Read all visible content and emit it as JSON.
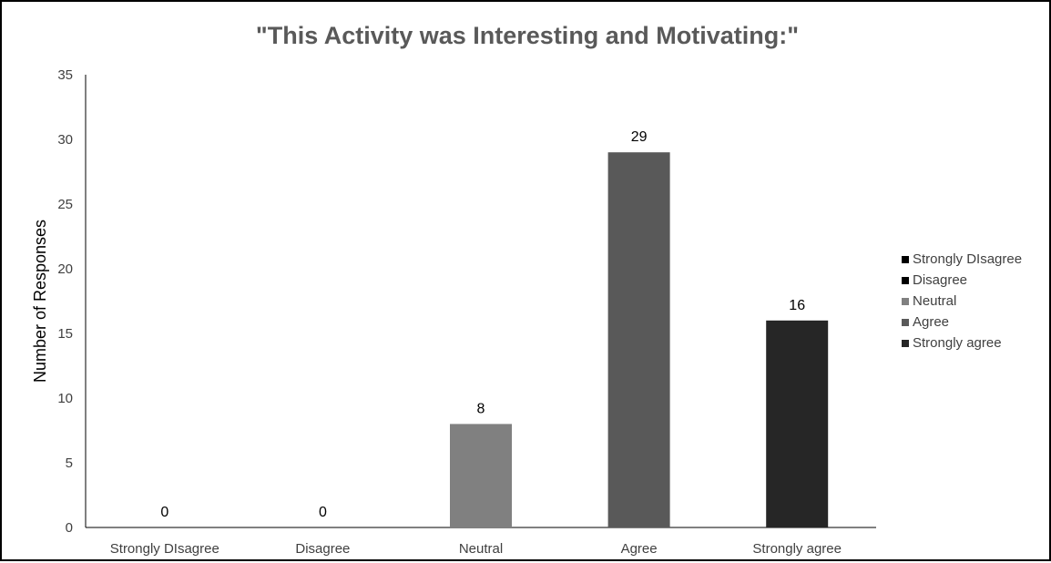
{
  "chart_data": {
    "type": "bar",
    "title": "\"This Activity was Interesting and Motivating:\"",
    "xlabel": "",
    "ylabel": "Number of Responses",
    "categories": [
      "Strongly DIsagree",
      "Disagree",
      "Neutral",
      "Agree",
      "Strongly agree"
    ],
    "values": [
      0,
      0,
      8,
      29,
      16
    ],
    "ylim": [
      0,
      35
    ],
    "yticks": [
      0,
      5,
      10,
      15,
      20,
      25,
      30,
      35
    ],
    "grid": false,
    "legend_position": "right",
    "legend": [
      "Strongly DIsagree",
      "Disagree",
      "Neutral",
      "Agree",
      "Strongly agree"
    ],
    "colors": [
      "#000000",
      "#000000",
      "#808080",
      "#595959",
      "#262626"
    ]
  }
}
